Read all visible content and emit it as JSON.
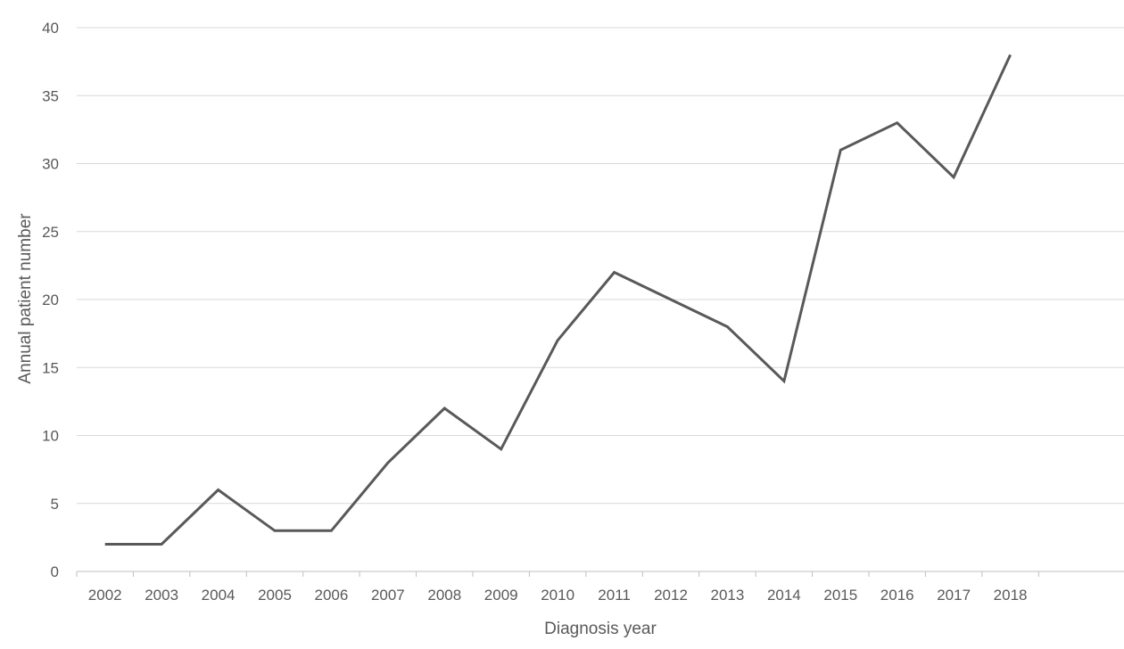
{
  "chart_data": {
    "type": "line",
    "title": "",
    "xlabel": "Diagnosis year",
    "ylabel": "Annual patient number",
    "categories": [
      "2002",
      "2003",
      "2004",
      "2005",
      "2006",
      "2007",
      "2008",
      "2009",
      "2010",
      "2011",
      "2012",
      "2013",
      "2014",
      "2015",
      "2016",
      "2017",
      "2018"
    ],
    "y_ticks": [
      "0",
      "5",
      "10",
      "15",
      "20",
      "25",
      "30",
      "35",
      "40"
    ],
    "ylim": [
      0,
      40
    ],
    "series": [
      {
        "values": [
          2,
          2,
          6,
          3,
          3,
          8,
          12,
          9,
          17,
          22,
          20,
          18,
          14,
          31,
          33,
          29,
          38
        ]
      }
    ],
    "grid": true,
    "legend": "none",
    "colors": {
      "line": "#595959",
      "grid": "#d9d9d9",
      "axis": "#bfbfbf",
      "text": "#595959"
    }
  }
}
